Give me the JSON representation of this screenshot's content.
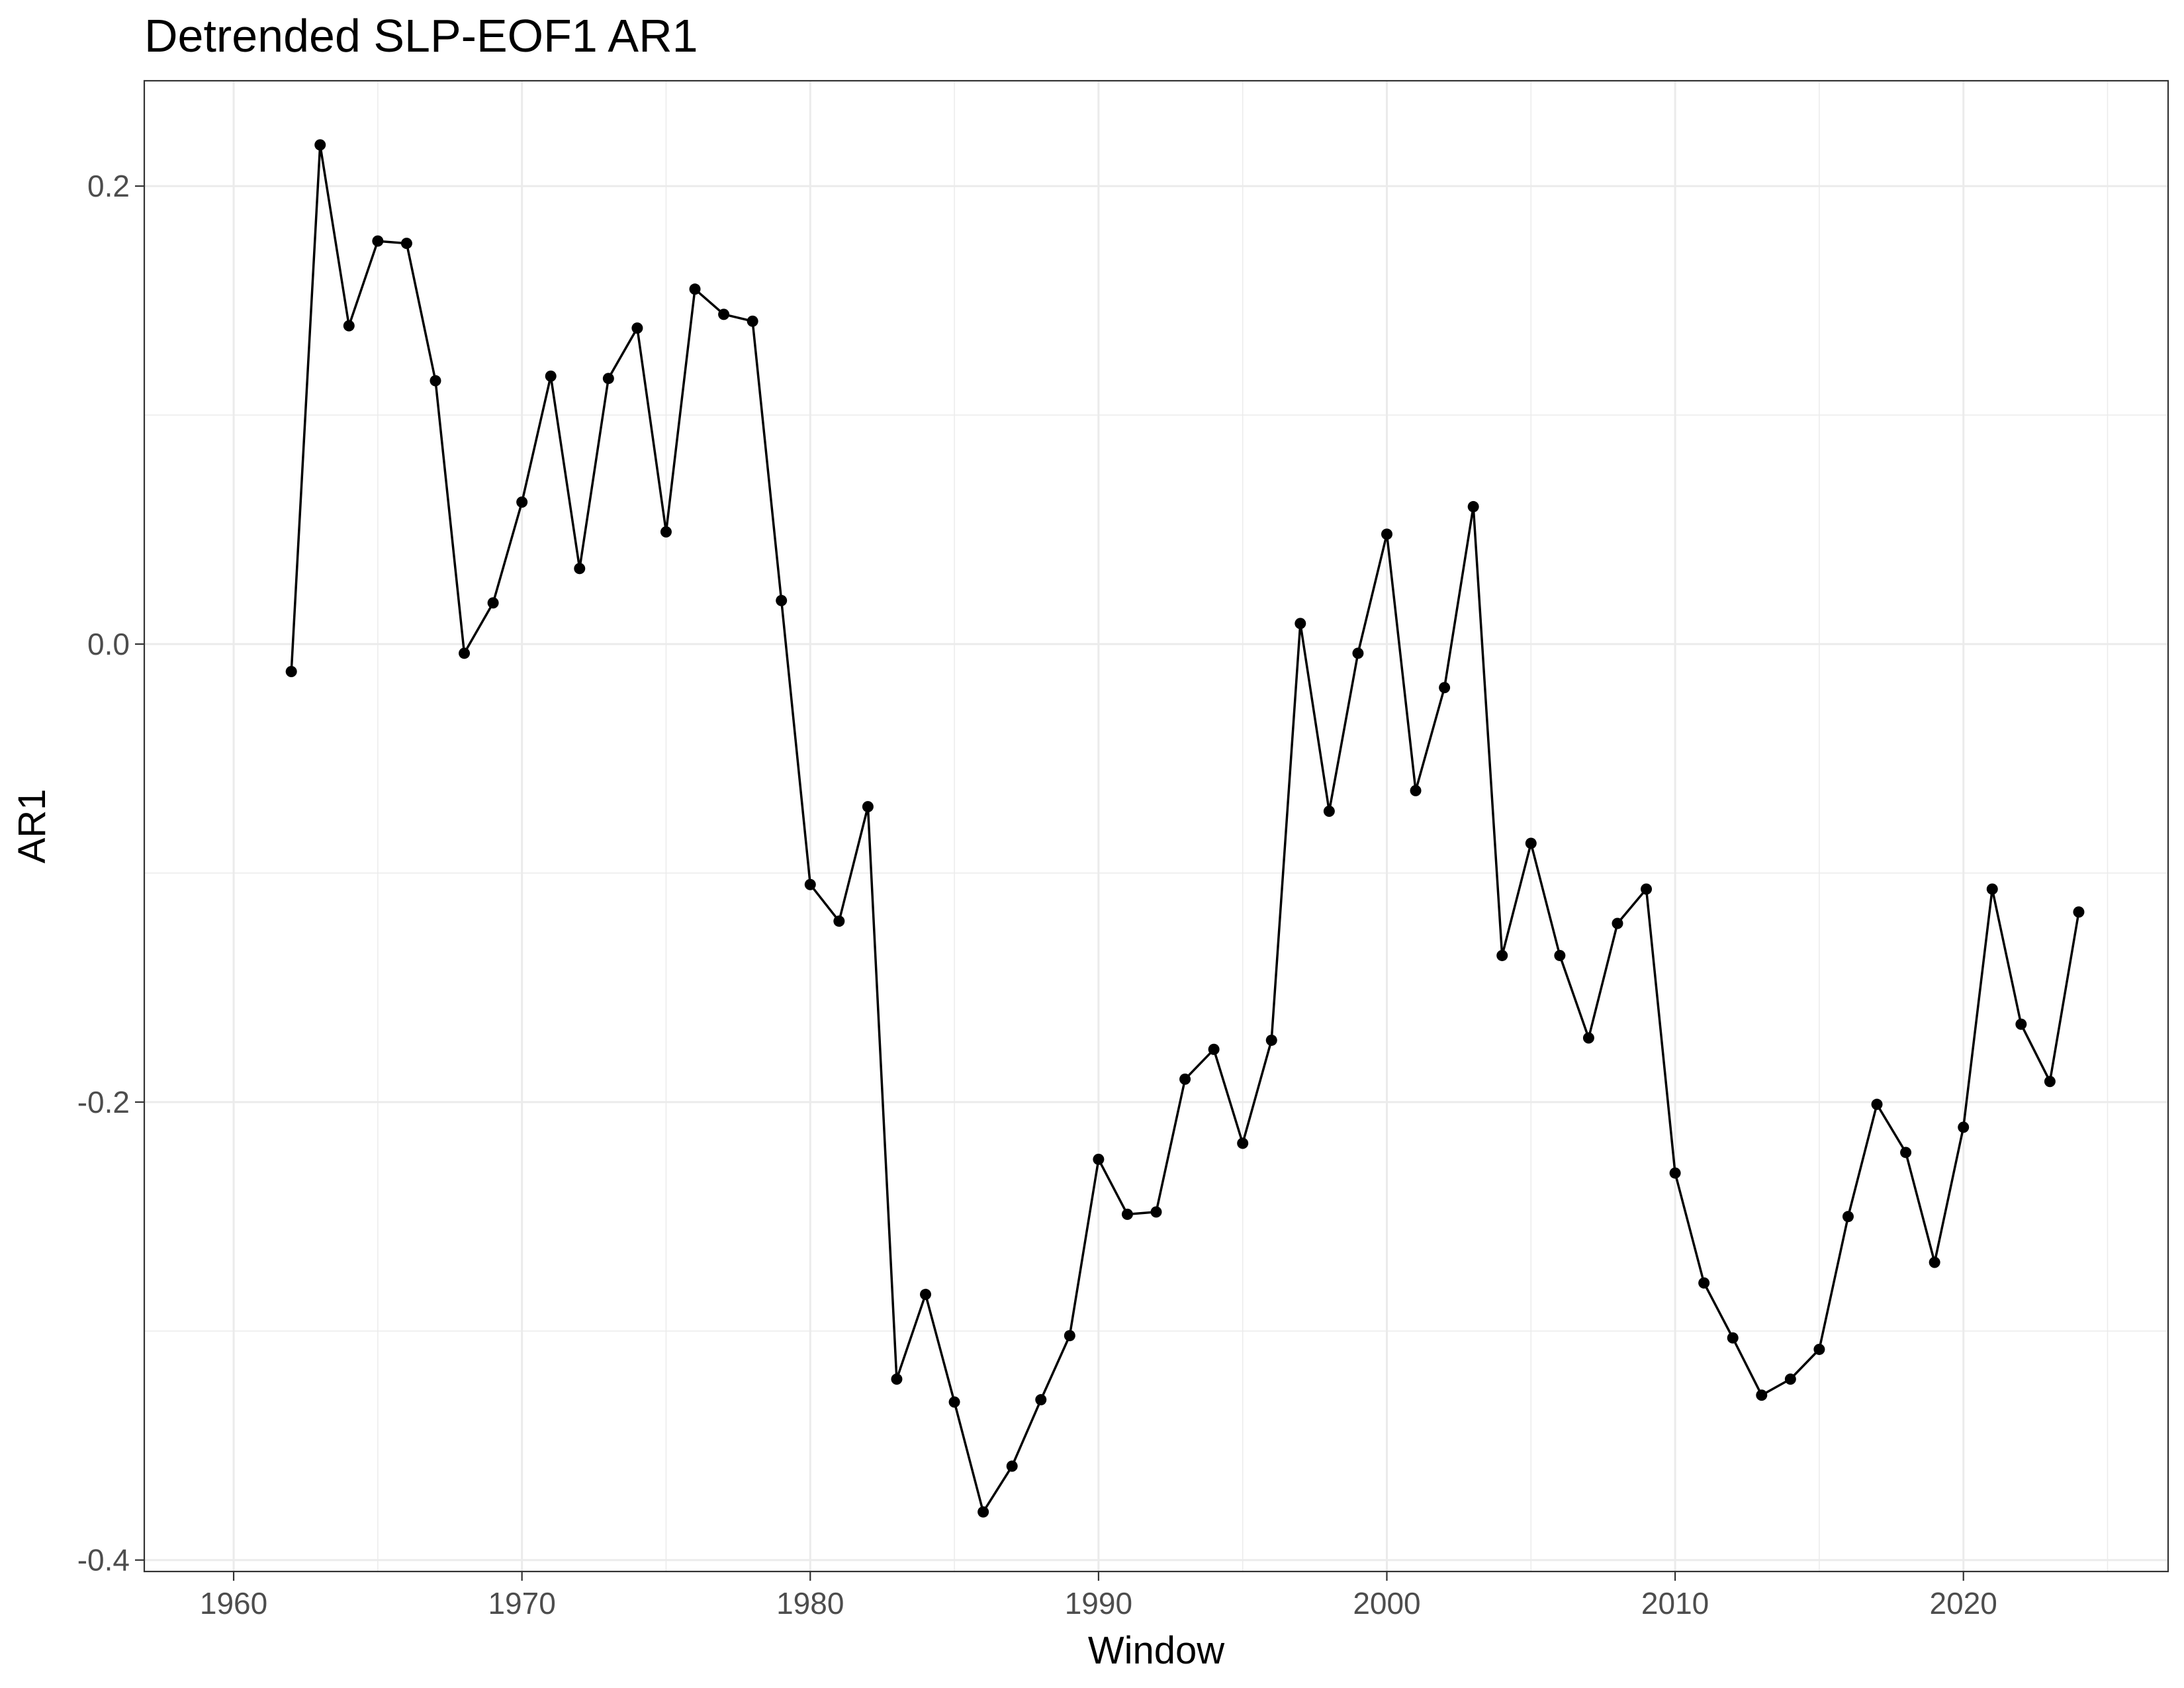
{
  "chart_data": {
    "type": "line",
    "title": "Detrended SLP-EOF1 AR1",
    "xlabel": "Window",
    "ylabel": "AR1",
    "xlim": [
      1956.9,
      2027.1
    ],
    "ylim": [
      -0.405,
      0.246
    ],
    "x_ticks": [
      1960,
      1970,
      1980,
      1990,
      2000,
      2010,
      2020
    ],
    "y_ticks": [
      -0.4,
      -0.2,
      0.0,
      0.2
    ],
    "x_tick_labels": [
      "1960",
      "1970",
      "1980",
      "1990",
      "2000",
      "2010",
      "2020"
    ],
    "y_tick_labels": [
      "-0.4",
      "-0.2",
      "0.0",
      "0.2"
    ],
    "grid": true,
    "legend": "none",
    "series": [
      {
        "color": "#000000",
        "x": [
          1962,
          1963,
          1964,
          1965,
          1966,
          1967,
          1968,
          1969,
          1970,
          1971,
          1972,
          1973,
          1974,
          1975,
          1976,
          1977,
          1978,
          1979,
          1980,
          1981,
          1982,
          1983,
          1984,
          1985,
          1986,
          1987,
          1988,
          1989,
          1990,
          1991,
          1992,
          1993,
          1994,
          1995,
          1996,
          1997,
          1998,
          1999,
          2000,
          2001,
          2002,
          2003,
          2004,
          2005,
          2006,
          2007,
          2008,
          2009,
          2010,
          2011,
          2012,
          2013,
          2014,
          2015,
          2016,
          2017,
          2018,
          2019,
          2020,
          2021,
          2022,
          2023,
          2024
        ],
        "y": [
          -0.012,
          0.218,
          0.139,
          0.176,
          0.175,
          0.115,
          -0.004,
          0.018,
          0.062,
          0.117,
          0.033,
          0.116,
          0.138,
          0.049,
          0.155,
          0.144,
          0.141,
          0.019,
          -0.105,
          -0.121,
          -0.071,
          -0.321,
          -0.284,
          -0.331,
          -0.379,
          -0.359,
          -0.33,
          -0.302,
          -0.225,
          -0.249,
          -0.248,
          -0.19,
          -0.177,
          -0.218,
          -0.173,
          0.009,
          -0.073,
          -0.004,
          0.048,
          -0.064,
          -0.019,
          0.06,
          -0.136,
          -0.087,
          -0.136,
          -0.172,
          -0.122,
          -0.107,
          -0.231,
          -0.279,
          -0.303,
          -0.328,
          -0.321,
          -0.308,
          -0.25,
          -0.201,
          -0.222,
          -0.27,
          -0.211,
          -0.107,
          -0.166,
          -0.191,
          -0.117
        ]
      }
    ]
  }
}
